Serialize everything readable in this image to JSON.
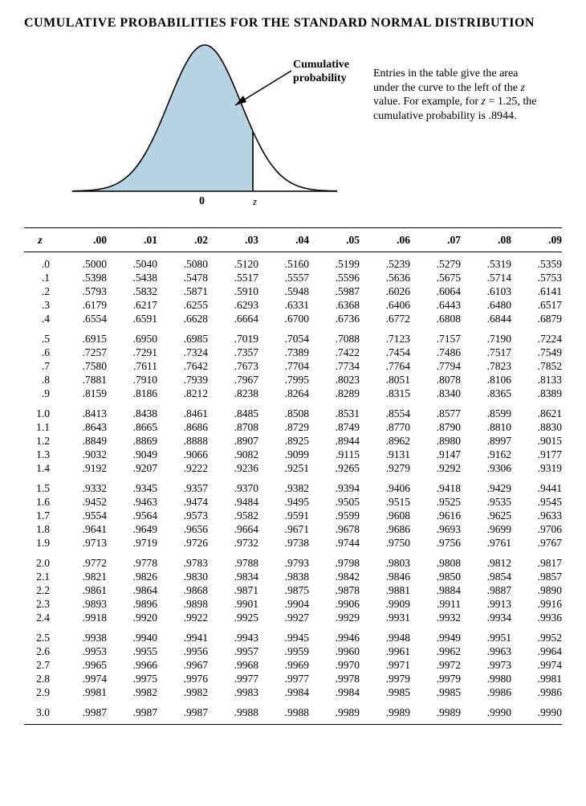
{
  "title": "CUMULATIVE PROBABILITIES FOR THE STANDARD NORMAL DISTRIBUTION",
  "figure": {
    "cum_label_line1": "Cumulative",
    "cum_label_line2": "probability",
    "explain_html": "Entries in the table give the area under the curve to the left of the <i>z</i> value. For example, for <i>z</i> = 1.25, the cumulative probability is .8944.",
    "axis_zero": "0",
    "axis_z": "z",
    "fill_color": "#b8d4e3",
    "stroke_color": "#000000",
    "baseline_color": "#000000"
  },
  "table": {
    "header_z": "z",
    "columns": [
      ".00",
      ".01",
      ".02",
      ".03",
      ".04",
      ".05",
      ".06",
      ".07",
      ".08",
      ".09"
    ],
    "groups": [
      [
        {
          "z": ".0",
          "v": [
            ".5000",
            ".5040",
            ".5080",
            ".5120",
            ".5160",
            ".5199",
            ".5239",
            ".5279",
            ".5319",
            ".5359"
          ]
        },
        {
          "z": ".1",
          "v": [
            ".5398",
            ".5438",
            ".5478",
            ".5517",
            ".5557",
            ".5596",
            ".5636",
            ".5675",
            ".5714",
            ".5753"
          ]
        },
        {
          "z": ".2",
          "v": [
            ".5793",
            ".5832",
            ".5871",
            ".5910",
            ".5948",
            ".5987",
            ".6026",
            ".6064",
            ".6103",
            ".6141"
          ]
        },
        {
          "z": ".3",
          "v": [
            ".6179",
            ".6217",
            ".6255",
            ".6293",
            ".6331",
            ".6368",
            ".6406",
            ".6443",
            ".6480",
            ".6517"
          ]
        },
        {
          "z": ".4",
          "v": [
            ".6554",
            ".6591",
            ".6628",
            ".6664",
            ".6700",
            ".6736",
            ".6772",
            ".6808",
            ".6844",
            ".6879"
          ]
        }
      ],
      [
        {
          "z": ".5",
          "v": [
            ".6915",
            ".6950",
            ".6985",
            ".7019",
            ".7054",
            ".7088",
            ".7123",
            ".7157",
            ".7190",
            ".7224"
          ]
        },
        {
          "z": ".6",
          "v": [
            ".7257",
            ".7291",
            ".7324",
            ".7357",
            ".7389",
            ".7422",
            ".7454",
            ".7486",
            ".7517",
            ".7549"
          ]
        },
        {
          "z": ".7",
          "v": [
            ".7580",
            ".7611",
            ".7642",
            ".7673",
            ".7704",
            ".7734",
            ".7764",
            ".7794",
            ".7823",
            ".7852"
          ]
        },
        {
          "z": ".8",
          "v": [
            ".7881",
            ".7910",
            ".7939",
            ".7967",
            ".7995",
            ".8023",
            ".8051",
            ".8078",
            ".8106",
            ".8133"
          ]
        },
        {
          "z": ".9",
          "v": [
            ".8159",
            ".8186",
            ".8212",
            ".8238",
            ".8264",
            ".8289",
            ".8315",
            ".8340",
            ".8365",
            ".8389"
          ]
        }
      ],
      [
        {
          "z": "1.0",
          "v": [
            ".8413",
            ".8438",
            ".8461",
            ".8485",
            ".8508",
            ".8531",
            ".8554",
            ".8577",
            ".8599",
            ".8621"
          ]
        },
        {
          "z": "1.1",
          "v": [
            ".8643",
            ".8665",
            ".8686",
            ".8708",
            ".8729",
            ".8749",
            ".8770",
            ".8790",
            ".8810",
            ".8830"
          ]
        },
        {
          "z": "1.2",
          "v": [
            ".8849",
            ".8869",
            ".8888",
            ".8907",
            ".8925",
            ".8944",
            ".8962",
            ".8980",
            ".8997",
            ".9015"
          ]
        },
        {
          "z": "1.3",
          "v": [
            ".9032",
            ".9049",
            ".9066",
            ".9082",
            ".9099",
            ".9115",
            ".9131",
            ".9147",
            ".9162",
            ".9177"
          ]
        },
        {
          "z": "1.4",
          "v": [
            ".9192",
            ".9207",
            ".9222",
            ".9236",
            ".9251",
            ".9265",
            ".9279",
            ".9292",
            ".9306",
            ".9319"
          ]
        }
      ],
      [
        {
          "z": "1.5",
          "v": [
            ".9332",
            ".9345",
            ".9357",
            ".9370",
            ".9382",
            ".9394",
            ".9406",
            ".9418",
            ".9429",
            ".9441"
          ]
        },
        {
          "z": "1.6",
          "v": [
            ".9452",
            ".9463",
            ".9474",
            ".9484",
            ".9495",
            ".9505",
            ".9515",
            ".9525",
            ".9535",
            ".9545"
          ]
        },
        {
          "z": "1.7",
          "v": [
            ".9554",
            ".9564",
            ".9573",
            ".9582",
            ".9591",
            ".9599",
            ".9608",
            ".9616",
            ".9625",
            ".9633"
          ]
        },
        {
          "z": "1.8",
          "v": [
            ".9641",
            ".9649",
            ".9656",
            ".9664",
            ".9671",
            ".9678",
            ".9686",
            ".9693",
            ".9699",
            ".9706"
          ]
        },
        {
          "z": "1.9",
          "v": [
            ".9713",
            ".9719",
            ".9726",
            ".9732",
            ".9738",
            ".9744",
            ".9750",
            ".9756",
            ".9761",
            ".9767"
          ]
        }
      ],
      [
        {
          "z": "2.0",
          "v": [
            ".9772",
            ".9778",
            ".9783",
            ".9788",
            ".9793",
            ".9798",
            ".9803",
            ".9808",
            ".9812",
            ".9817"
          ]
        },
        {
          "z": "2.1",
          "v": [
            ".9821",
            ".9826",
            ".9830",
            ".9834",
            ".9838",
            ".9842",
            ".9846",
            ".9850",
            ".9854",
            ".9857"
          ]
        },
        {
          "z": "2.2",
          "v": [
            ".9861",
            ".9864",
            ".9868",
            ".9871",
            ".9875",
            ".9878",
            ".9881",
            ".9884",
            ".9887",
            ".9890"
          ]
        },
        {
          "z": "2.3",
          "v": [
            ".9893",
            ".9896",
            ".9898",
            ".9901",
            ".9904",
            ".9906",
            ".9909",
            ".9911",
            ".9913",
            ".9916"
          ]
        },
        {
          "z": "2.4",
          "v": [
            ".9918",
            ".9920",
            ".9922",
            ".9925",
            ".9927",
            ".9929",
            ".9931",
            ".9932",
            ".9934",
            ".9936"
          ]
        }
      ],
      [
        {
          "z": "2.5",
          "v": [
            ".9938",
            ".9940",
            ".9941",
            ".9943",
            ".9945",
            ".9946",
            ".9948",
            ".9949",
            ".9951",
            ".9952"
          ]
        },
        {
          "z": "2.6",
          "v": [
            ".9953",
            ".9955",
            ".9956",
            ".9957",
            ".9959",
            ".9960",
            ".9961",
            ".9962",
            ".9963",
            ".9964"
          ]
        },
        {
          "z": "2.7",
          "v": [
            ".9965",
            ".9966",
            ".9967",
            ".9968",
            ".9969",
            ".9970",
            ".9971",
            ".9972",
            ".9973",
            ".9974"
          ]
        },
        {
          "z": "2.8",
          "v": [
            ".9974",
            ".9975",
            ".9976",
            ".9977",
            ".9977",
            ".9978",
            ".9979",
            ".9979",
            ".9980",
            ".9981"
          ]
        },
        {
          "z": "2.9",
          "v": [
            ".9981",
            ".9982",
            ".9982",
            ".9983",
            ".9984",
            ".9984",
            ".9985",
            ".9985",
            ".9986",
            ".9986"
          ]
        }
      ],
      [
        {
          "z": "3.0",
          "v": [
            ".9987",
            ".9987",
            ".9987",
            ".9988",
            ".9988",
            ".9989",
            ".9989",
            ".9989",
            ".9990",
            ".9990"
          ]
        }
      ]
    ]
  }
}
